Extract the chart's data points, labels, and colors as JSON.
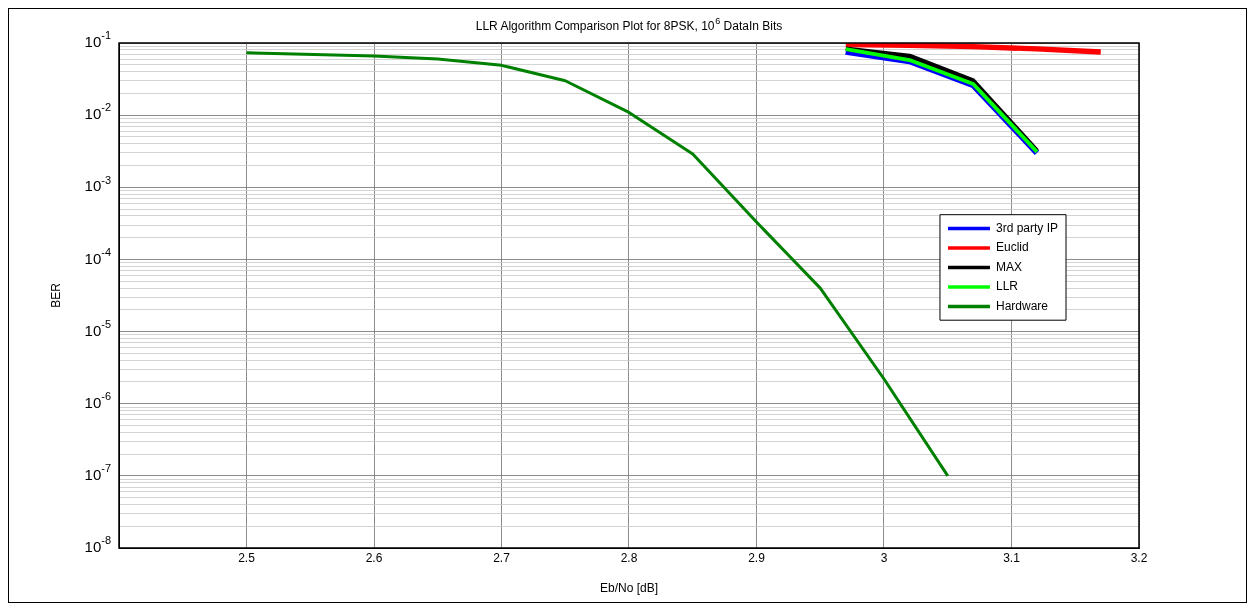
{
  "chart_data": {
    "type": "line",
    "title": "LLR Algorithm Comparison Plot for 8PSK, 10$^{6}$ DataIn Bits",
    "xlabel": "Eb/No [dB]",
    "ylabel": "BER",
    "log": "y",
    "grid": true,
    "legend": "right",
    "marker": "none",
    "line_style": "solid",
    "xlim": [
      2.4,
      3.2
    ],
    "xticks": [
      {
        "value": 2.4,
        "label": null
      },
      2.5,
      2.6,
      2.7,
      2.8,
      2.9,
      3,
      3.1,
      3.2
    ],
    "ylim": [
      1e-08,
      0.1
    ],
    "yticks": [
      {
        "value": 1e-08,
        "label": "10$^{-8}$"
      },
      {
        "value": 2e-08,
        "label": null
      },
      {
        "value": 3e-08,
        "label": null
      },
      {
        "value": 4e-08,
        "label": null
      },
      {
        "value": 5e-08,
        "label": null
      },
      {
        "value": 6e-08,
        "label": null
      },
      {
        "value": 7e-08,
        "label": null
      },
      {
        "value": 8e-08,
        "label": null
      },
      {
        "value": 9e-08,
        "label": null
      },
      {
        "value": 1e-07,
        "label": "10$^{-7}$"
      },
      {
        "value": 2e-07,
        "label": null
      },
      {
        "value": 3e-07,
        "label": null
      },
      {
        "value": 4e-07,
        "label": null
      },
      {
        "value": 5e-07,
        "label": null
      },
      {
        "value": 6e-07,
        "label": null
      },
      {
        "value": 7e-07,
        "label": null
      },
      {
        "value": 8e-07,
        "label": null
      },
      {
        "value": 9e-07,
        "label": null
      },
      {
        "value": 1e-06,
        "label": "10$^{-6}$"
      },
      {
        "value": 2e-06,
        "label": null
      },
      {
        "value": 3e-06,
        "label": null
      },
      {
        "value": 4e-06,
        "label": null
      },
      {
        "value": 5e-06,
        "label": null
      },
      {
        "value": 6e-06,
        "label": null
      },
      {
        "value": 7e-06,
        "label": null
      },
      {
        "value": 8e-06,
        "label": null
      },
      {
        "value": 9e-06,
        "label": null
      },
      {
        "value": 1e-05,
        "label": "10$^{-5}$"
      },
      {
        "value": 2e-05,
        "label": null
      },
      {
        "value": 3e-05,
        "label": null
      },
      {
        "value": 4e-05,
        "label": null
      },
      {
        "value": 5e-05,
        "label": null
      },
      {
        "value": 6e-05,
        "label": null
      },
      {
        "value": 7e-05,
        "label": null
      },
      {
        "value": 8e-05,
        "label": null
      },
      {
        "value": 9e-05,
        "label": null
      },
      {
        "value": 0.0001,
        "label": "10$^{-4}$"
      },
      {
        "value": 0.0002,
        "label": null
      },
      {
        "value": 0.0003,
        "label": null
      },
      {
        "value": 0.0004,
        "label": null
      },
      {
        "value": 0.0005,
        "label": null
      },
      {
        "value": 0.0006,
        "label": null
      },
      {
        "value": 0.0007,
        "label": null
      },
      {
        "value": 0.0008,
        "label": null
      },
      {
        "value": 0.0009,
        "label": null
      },
      {
        "value": 0.001,
        "label": "10$^{-3}$"
      },
      {
        "value": 0.002,
        "label": null
      },
      {
        "value": 0.003,
        "label": null
      },
      {
        "value": 0.004,
        "label": null
      },
      {
        "value": 0.005,
        "label": null
      },
      {
        "value": 0.006,
        "label": null
      },
      {
        "value": 0.007,
        "label": null
      },
      {
        "value": 0.008,
        "label": null
      },
      {
        "value": 0.009,
        "label": null
      },
      {
        "value": 0.01,
        "label": "10$^{-2}$"
      },
      {
        "value": 0.02,
        "label": null
      },
      {
        "value": 0.03,
        "label": null
      },
      {
        "value": 0.04,
        "label": null
      },
      {
        "value": 0.05,
        "label": null
      },
      {
        "value": 0.06,
        "label": null
      },
      {
        "value": 0.07,
        "label": null
      },
      {
        "value": 0.08,
        "label": null
      },
      {
        "value": 0.09,
        "label": null
      },
      {
        "value": 0.1,
        "label": "10$^{-1}$"
      }
    ],
    "series": [
      {
        "name": "3rd party IP",
        "color": "#0000ff",
        "x": [
          2.97,
          3.02,
          3.07,
          3.12
        ],
        "values": [
          0.076,
          0.056,
          0.026,
          0.003
        ]
      },
      {
        "name": "Euclid",
        "color": "#ff0000",
        "x": [
          2.97,
          3.02,
          3.07,
          3.12,
          3.17
        ],
        "values": [
          0.095,
          0.093,
          0.089,
          0.083,
          0.075
        ]
      },
      {
        "name": "MAX",
        "color": "#000000",
        "x": [
          2.97,
          3.02,
          3.07,
          3.12
        ],
        "values": [
          0.083,
          0.066,
          0.03,
          0.0032
        ]
      },
      {
        "name": "LLR",
        "color": "#00ff00",
        "x": [
          2.97,
          3.02,
          3.07,
          3.12
        ],
        "values": [
          0.082,
          0.058,
          0.027,
          0.0031
        ]
      },
      {
        "name": "Hardware",
        "color": "#008000",
        "x": [
          2.5,
          2.6,
          2.65,
          2.7,
          2.75,
          2.8,
          2.85,
          2.9,
          2.95,
          3,
          3.05
        ],
        "values": [
          0.073,
          0.066,
          0.06,
          0.049,
          0.03,
          0.0109,
          0.0029,
          0.00033,
          4e-05,
          2.2e-06,
          1e-07
        ]
      }
    ]
  }
}
